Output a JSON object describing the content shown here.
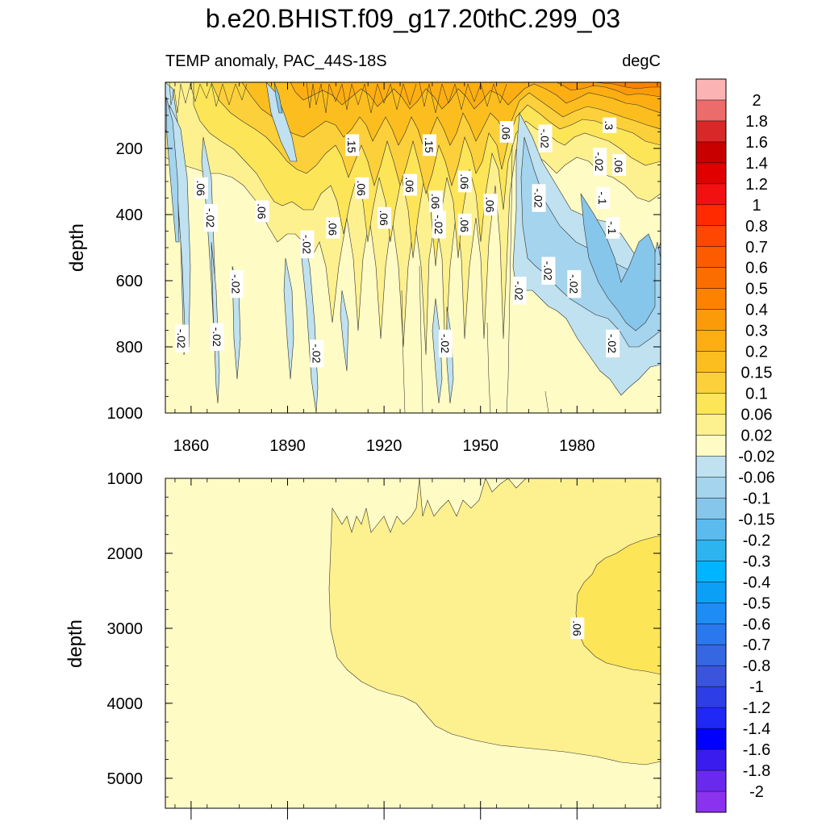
{
  "chart_data": {
    "type": "heatmap",
    "title": "b.e20.BHIST.f09_g17.20thC.299_03",
    "subtitle_left": "TEMP anomaly, PAC_44S-18S",
    "subtitle_right": "degC",
    "x_ticks": [
      "1860",
      "1890",
      "1920",
      "1950",
      "1980"
    ],
    "x_tick_values": [
      1860,
      1890,
      1920,
      1950,
      1980
    ],
    "xlim": [
      1852,
      2006
    ],
    "panels": [
      {
        "name": "upper",
        "ylabel": "depth",
        "ylim": [
          0,
          1000
        ],
        "y_ticks": [
          "200",
          "400",
          "600",
          "800",
          "1000"
        ],
        "y_tick_values": [
          200,
          400,
          600,
          800,
          1000
        ],
        "contour_labels": [
          {
            "text": "-.02",
            "year": 1857,
            "depth": 775
          },
          {
            "text": ".06",
            "year": 1863,
            "depth": 320
          },
          {
            "text": "-.02",
            "year": 1866,
            "depth": 410
          },
          {
            "text": "-.02",
            "year": 1868,
            "depth": 770
          },
          {
            "text": "-.02",
            "year": 1874,
            "depth": 610
          },
          {
            "text": ".06",
            "year": 1882,
            "depth": 390
          },
          {
            "text": "-.02",
            "year": 1896,
            "depth": 490
          },
          {
            "text": "-.02",
            "year": 1899,
            "depth": 820
          },
          {
            "text": ".06",
            "year": 1904,
            "depth": 440
          },
          {
            "text": ".15",
            "year": 1910,
            "depth": 190
          },
          {
            "text": ".06",
            "year": 1913,
            "depth": 320
          },
          {
            "text": ".06",
            "year": 1920,
            "depth": 410
          },
          {
            "text": ".06",
            "year": 1928,
            "depth": 310
          },
          {
            "text": ".15",
            "year": 1934,
            "depth": 190
          },
          {
            "text": ".06",
            "year": 1936,
            "depth": 360
          },
          {
            "text": "-.02",
            "year": 1937,
            "depth": 430
          },
          {
            "text": ".06",
            "year": 1945,
            "depth": 300
          },
          {
            "text": ".06",
            "year": 1945,
            "depth": 430
          },
          {
            "text": "-.02",
            "year": 1939,
            "depth": 790
          },
          {
            "text": ".06",
            "year": 1953,
            "depth": 370
          },
          {
            "text": ".06",
            "year": 1958,
            "depth": 150
          },
          {
            "text": "-.02",
            "year": 1962,
            "depth": 630
          },
          {
            "text": "-.02",
            "year": 1968,
            "depth": 350
          },
          {
            "text": "-.02",
            "year": 1970,
            "depth": 170
          },
          {
            "text": "-.02",
            "year": 1971,
            "depth": 570
          },
          {
            "text": "-.02",
            "year": 1979,
            "depth": 610
          },
          {
            "text": ".3",
            "year": 1990,
            "depth": 130
          },
          {
            "text": "-.02",
            "year": 1987,
            "depth": 240
          },
          {
            "text": ".06",
            "year": 1993,
            "depth": 250
          },
          {
            "text": "-.1",
            "year": 1988,
            "depth": 350
          },
          {
            "text": "-.1",
            "year": 1991,
            "depth": 440
          },
          {
            "text": "-.02",
            "year": 1991,
            "depth": 790
          }
        ]
      },
      {
        "name": "lower",
        "ylabel": "depth",
        "ylim": [
          1000,
          5400
        ],
        "y_ticks": [
          "1000",
          "2000",
          "3000",
          "4000",
          "5000"
        ],
        "y_tick_values": [
          1000,
          2000,
          3000,
          4000,
          5000
        ],
        "contour_labels": [
          {
            "text": ".06",
            "year": 1980,
            "depth": 3000
          }
        ]
      }
    ],
    "colorbar": {
      "labels": [
        "2",
        "1.8",
        "1.6",
        "1.4",
        "1.2",
        "1",
        "0.8",
        "0.7",
        "0.6",
        "0.5",
        "0.4",
        "0.3",
        "0.2",
        "0.15",
        "0.1",
        "0.06",
        "0.02",
        "-0.02",
        "-0.06",
        "-0.1",
        "-0.15",
        "-0.2",
        "-0.3",
        "-0.4",
        "-0.5",
        "-0.6",
        "-0.7",
        "-0.8",
        "-1",
        "-1.2",
        "-1.4",
        "-1.6",
        "-1.8",
        "-2"
      ],
      "colors": [
        "#fbb3b3",
        "#ec6b6b",
        "#d82828",
        "#c80000",
        "#e00000",
        "#f21010",
        "#ff2a00",
        "#fe4700",
        "#fc5b00",
        "#fc6d00",
        "#fc8200",
        "#fc9b0a",
        "#fcae12",
        "#fcbe1e",
        "#fcd03a",
        "#fde558",
        "#fdf08f",
        "#fefbc5",
        "#bfe1f0",
        "#a4d4ee",
        "#86c6ea",
        "#5cbbee",
        "#2db4ee",
        "#00b4ff",
        "#0ba0f6",
        "#1d8cf5",
        "#2a78ee",
        "#3567e2",
        "#3a55dc",
        "#2d3ee6",
        "#1f28f5",
        "#0000ff",
        "#3a1cee",
        "#6a2aee",
        "#8b32ef"
      ]
    }
  }
}
